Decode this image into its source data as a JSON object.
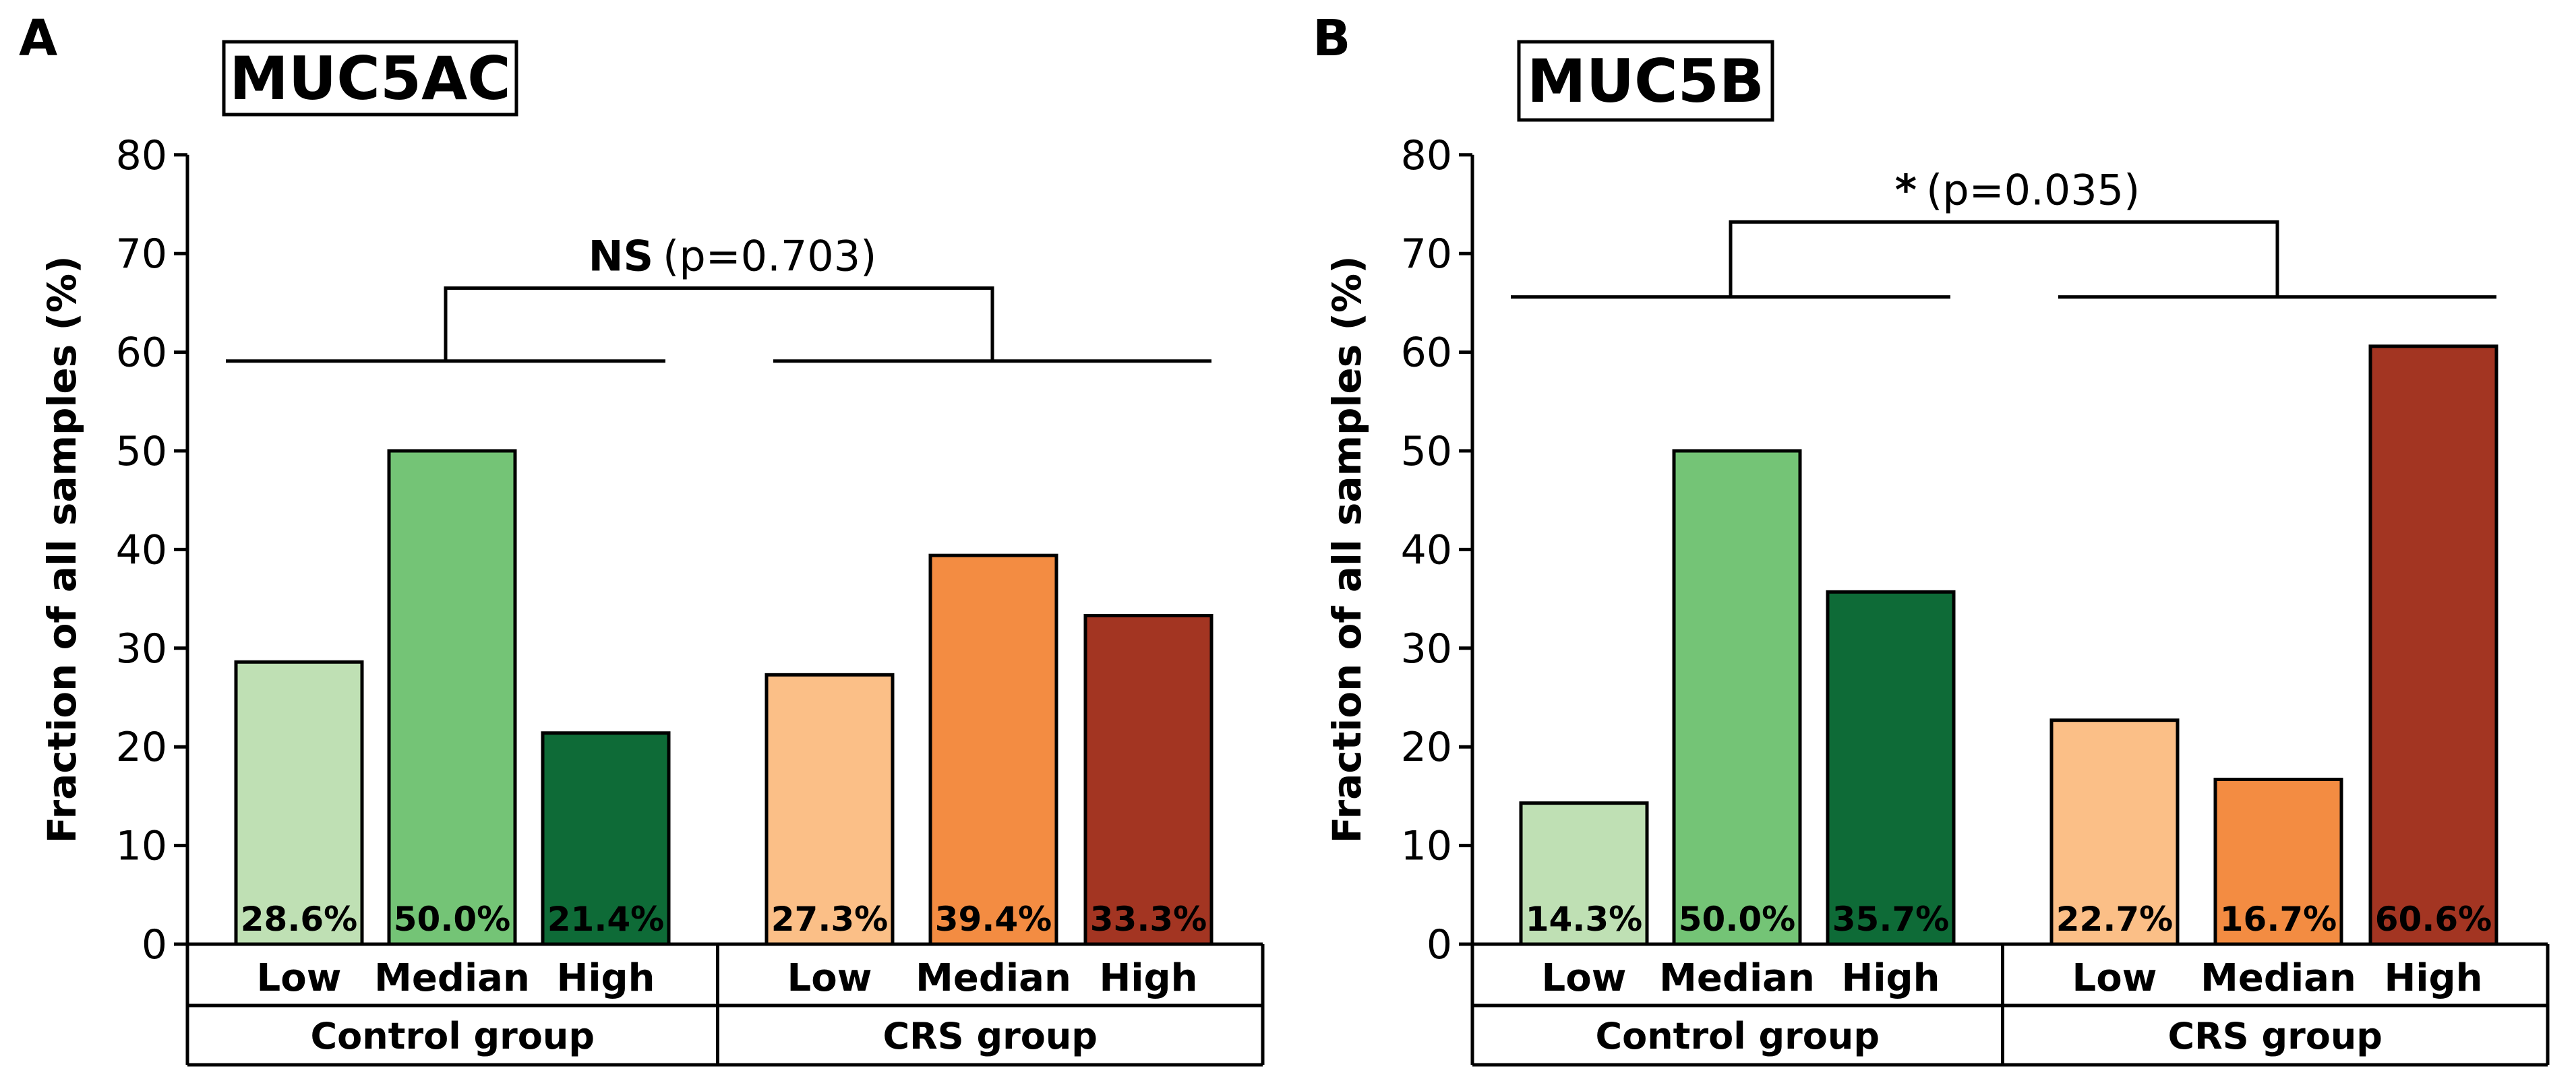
{
  "chart_data": [
    {
      "type": "bar",
      "panel": "A",
      "title": "MUC5AC",
      "ylabel": "Fraction of all samples (%)",
      "ylim": [
        0,
        80
      ],
      "yticks": [
        0,
        10,
        20,
        30,
        40,
        50,
        60,
        70,
        80
      ],
      "groups": [
        {
          "name": "Control group",
          "categories": [
            "Low",
            "Median",
            "High"
          ],
          "values": [
            28.6,
            50.0,
            21.4
          ],
          "labels": [
            "28.6%",
            "50.0%",
            "21.4%"
          ],
          "colors": [
            "#bfe0b4",
            "#74c476",
            "#0e6b37"
          ]
        },
        {
          "name": "CRS group",
          "categories": [
            "Low",
            "Median",
            "High"
          ],
          "values": [
            27.3,
            39.4,
            33.3
          ],
          "labels": [
            "27.3%",
            "39.4%",
            "33.3%"
          ],
          "colors": [
            "#fbbf87",
            "#f38c42",
            "#a33522"
          ]
        }
      ],
      "significance": {
        "mark": "NS",
        "p_text": "(p=0.703)",
        "level": 66.5
      }
    },
    {
      "type": "bar",
      "panel": "B",
      "title": "MUC5B",
      "ylabel": "Fraction of all samples (%)",
      "ylim": [
        0,
        80
      ],
      "yticks": [
        0,
        10,
        20,
        30,
        40,
        50,
        60,
        70,
        80
      ],
      "groups": [
        {
          "name": "Control group",
          "categories": [
            "Low",
            "Median",
            "High"
          ],
          "values": [
            14.3,
            50.0,
            35.7
          ],
          "labels": [
            "14.3%",
            "50.0%",
            "35.7%"
          ],
          "colors": [
            "#bfe0b4",
            "#74c476",
            "#0e6b37"
          ]
        },
        {
          "name": "CRS group",
          "categories": [
            "Low",
            "Median",
            "High"
          ],
          "values": [
            22.7,
            16.7,
            60.6
          ],
          "labels": [
            "22.7%",
            "16.7%",
            "60.6%"
          ],
          "colors": [
            "#fbbf87",
            "#f38c42",
            "#a33522"
          ]
        }
      ],
      "significance": {
        "mark": "*",
        "p_text": "(p=0.035)",
        "level": 73.2
      }
    }
  ]
}
